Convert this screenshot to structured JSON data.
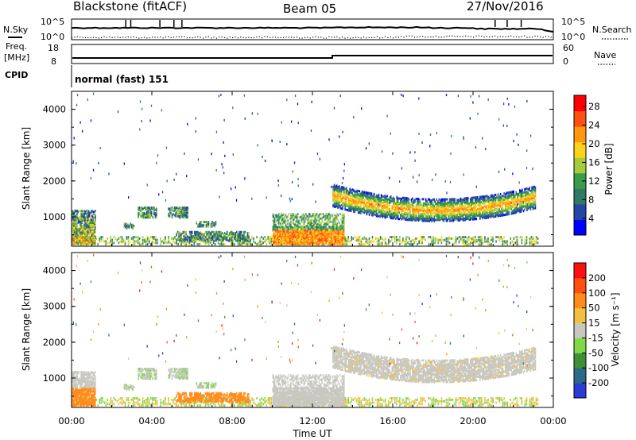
{
  "header": {
    "title": "Blackstone (fitACF)",
    "beam": "Beam 05",
    "date": "27/Nov/2016"
  },
  "noise_panel": {
    "left_label": "N.Sky",
    "right_label": "N.Search",
    "left_ticks": [
      "10^5",
      "10^0"
    ],
    "right_ticks": [
      "10^5",
      "10^0"
    ],
    "right_legend_style": "dotted"
  },
  "freq_panel": {
    "left_label_line1": "Freq.",
    "left_label_line2": "[MHz]",
    "right_label": "Nave",
    "left_ticks": [
      "18",
      "8"
    ],
    "right_ticks": [
      "60",
      "0"
    ],
    "right_legend_style": "dotted"
  },
  "cpid_panel": {
    "label": "CPID",
    "text": "normal (fast) 151"
  },
  "chart_data": [
    {
      "type": "heatmap",
      "name": "power",
      "ylabel": "Slant Range [km]",
      "yticks": [
        "1000",
        "2000",
        "3000",
        "4000"
      ],
      "ylim": [
        180,
        4500
      ],
      "xlim_hours": [
        0,
        24
      ],
      "colorbar": {
        "label": "Power [dB]",
        "ticks": [
          "28",
          "24",
          "20",
          "16",
          "12",
          "8",
          "4"
        ],
        "range": [
          0,
          30
        ],
        "colors": [
          "#0000ff",
          "#2546a6",
          "#2e7a62",
          "#3a9b4a",
          "#a6cc3c",
          "#ffd21a",
          "#ff9810",
          "#ff5010",
          "#ff0000"
        ]
      }
    },
    {
      "type": "heatmap",
      "name": "velocity",
      "ylabel": "Slant Range [km]",
      "yticks": [
        "1000",
        "2000",
        "3000",
        "4000"
      ],
      "ylim": [
        180,
        4500
      ],
      "xlim_hours": [
        0,
        24
      ],
      "colorbar": {
        "label": "Velocity [m s⁻¹]",
        "ticks": [
          "200",
          "100",
          "50",
          "15",
          "-15",
          "-50",
          "-100",
          "-200"
        ],
        "colors": [
          "#2a3bd6",
          "#2d6a8a",
          "#3f8f38",
          "#7ed848",
          "#c8c8c0",
          "#f2c040",
          "#ff8c1a",
          "#ff5010",
          "#ff1010"
        ]
      }
    }
  ],
  "xaxis": {
    "label": "Time UT",
    "ticks": [
      "00:00",
      "04:00",
      "08:00",
      "12:00",
      "16:00",
      "20:00",
      "00:00"
    ]
  }
}
